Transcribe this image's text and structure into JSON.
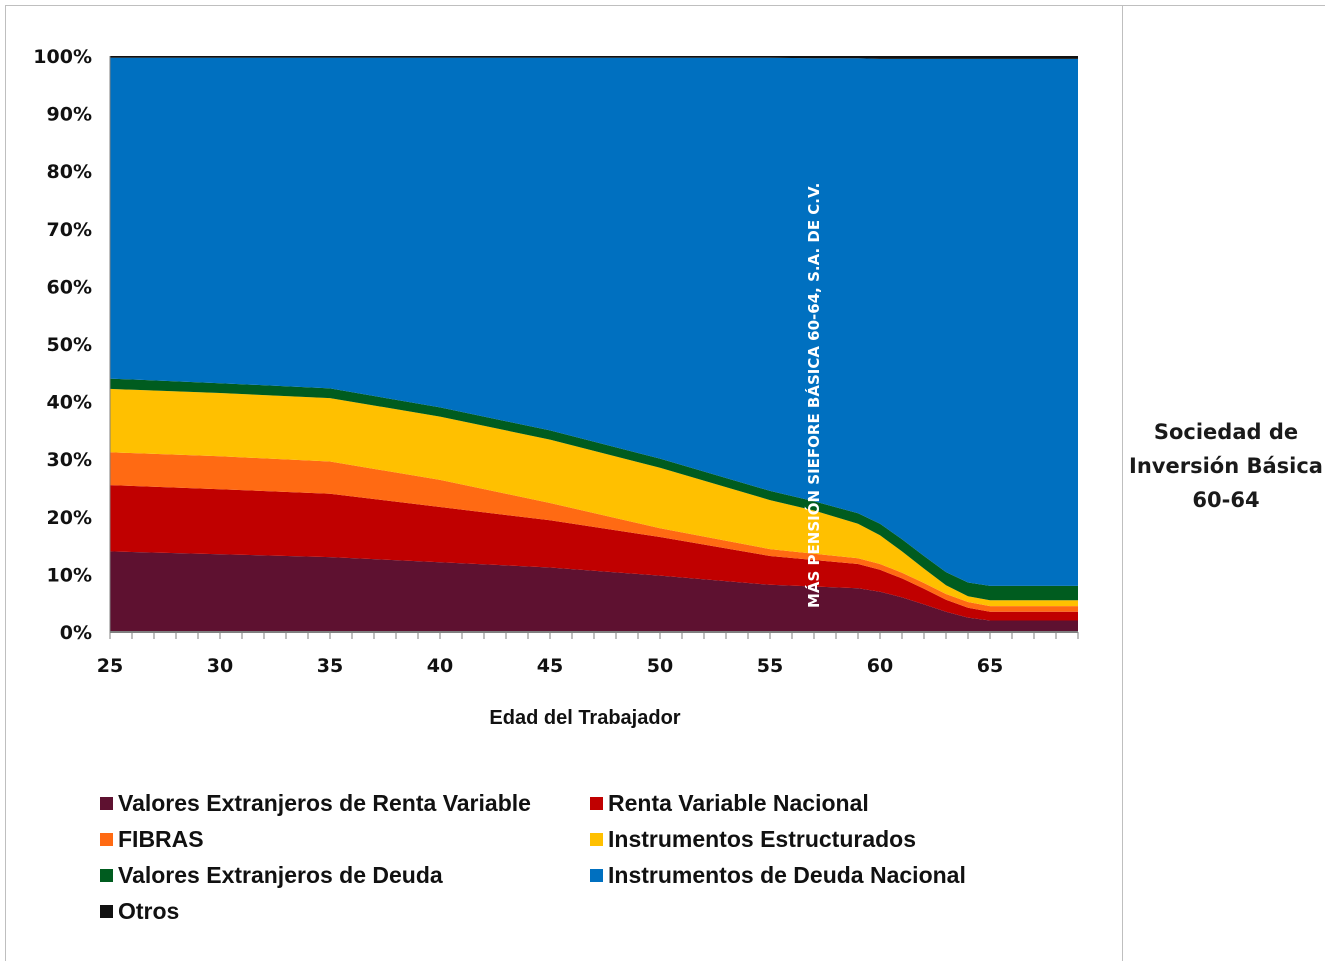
{
  "sidebar": {
    "title": "Sociedad de Inversión Básica 60-64"
  },
  "chart_data": {
    "type": "area",
    "stacked": true,
    "percent": true,
    "title": "",
    "xlabel": "Edad del Trabajador",
    "ylabel": "",
    "xlim": [
      25,
      69
    ],
    "ylim": [
      0,
      100
    ],
    "x_ticks": [
      25,
      30,
      35,
      40,
      45,
      50,
      55,
      60,
      65
    ],
    "y_ticks": [
      "0%",
      "10%",
      "20%",
      "30%",
      "40%",
      "50%",
      "60%",
      "70%",
      "80%",
      "90%",
      "100%"
    ],
    "annotation": "MÁS PENSIÓN SIEFORE BÁSICA 60-64, S.A. DE C.V.",
    "legend_position": "bottom",
    "x": [
      25,
      30,
      35,
      40,
      45,
      50,
      55,
      57,
      59,
      60,
      61,
      62,
      63,
      64,
      65,
      66,
      67,
      68,
      69
    ],
    "series": [
      {
        "name": "Valores Extranjeros de Renta Variable",
        "color": "#5e1130",
        "values": [
          14,
          13.5,
          13,
          12.1,
          11.2,
          9.8,
          8.2,
          7.9,
          7.6,
          7,
          6,
          4.8,
          3.5,
          2.5,
          2,
          2,
          2,
          2,
          2
        ]
      },
      {
        "name": "Renta Variable Nacional",
        "color": "#c00000",
        "values": [
          11.5,
          11.3,
          11,
          9.6,
          8.2,
          6.7,
          5,
          4.6,
          4.2,
          3.8,
          3.3,
          2.7,
          2.1,
          1.7,
          1.5,
          1.5,
          1.5,
          1.5,
          1.5
        ]
      },
      {
        "name": "FIBRAS",
        "color": "#ff6a13",
        "values": [
          5.7,
          5.7,
          5.6,
          4.7,
          3,
          1.5,
          1.2,
          1.1,
          1,
          1,
          1,
          1,
          1,
          1,
          1,
          1,
          1,
          1,
          1
        ]
      },
      {
        "name": "Instrumentos Estructurados",
        "color": "#ffc000",
        "values": [
          11,
          11,
          11,
          11,
          11,
          10.5,
          8.5,
          7.5,
          6,
          5,
          3.7,
          2.5,
          1.5,
          1,
          1,
          1,
          1,
          1,
          1
        ]
      },
      {
        "name": "Valores Extranjeros de Deuda",
        "color": "#005c1f",
        "values": [
          1.8,
          1.7,
          1.7,
          1.6,
          1.6,
          1.6,
          1.6,
          1.6,
          1.8,
          2,
          2.1,
          2.2,
          2.3,
          2.4,
          2.5,
          2.5,
          2.5,
          2.5,
          2.5
        ]
      },
      {
        "name": "Instrumentos de Deuda Nacional",
        "color": "#0070c0",
        "values": [
          55.7,
          56.5,
          57.4,
          60.7,
          64.7,
          69.6,
          75.2,
          76.9,
          79,
          80.7,
          83.4,
          86.3,
          89.1,
          90.9,
          91.5,
          91.5,
          91.5,
          91.5,
          91.5
        ]
      },
      {
        "name": "Otros",
        "color": "#111111",
        "values": [
          0.3,
          0.3,
          0.3,
          0.3,
          0.3,
          0.3,
          0.3,
          0.4,
          0.4,
          0.5,
          0.5,
          0.5,
          0.5,
          0.5,
          0.5,
          0.5,
          0.5,
          0.5,
          0.5
        ]
      }
    ]
  }
}
